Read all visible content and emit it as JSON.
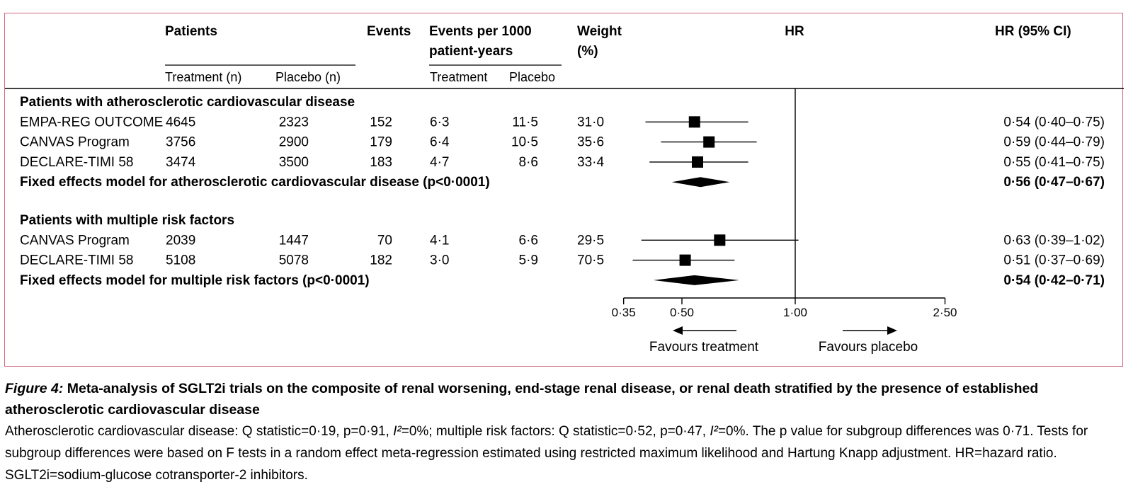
{
  "headers": {
    "patients": "Patients",
    "treatment_n": "Treatment (n)",
    "placebo_n": "Placebo (n)",
    "events": "Events",
    "events_per_1": "Events per 1000",
    "events_per_2": "patient-years",
    "treatment": "Treatment",
    "placebo": "Placebo",
    "weight_1": "Weight",
    "weight_2": "(%)",
    "hr": "HR",
    "hr_ci": "HR (95% CI)"
  },
  "chart_data": {
    "type": "forest",
    "x_scale": "log",
    "xlim": [
      0.35,
      2.5
    ],
    "ticks": [
      {
        "value": 0.35,
        "label": "0·35"
      },
      {
        "value": 0.5,
        "label": "0·50"
      },
      {
        "value": 1.0,
        "label": "1·00"
      },
      {
        "value": 2.5,
        "label": "2·50"
      }
    ],
    "reference_line": 1.0,
    "favours_treatment": "Favours treatment",
    "favours_placebo": "Favours placebo",
    "groups": [
      {
        "label": "Patients with atherosclerotic cardiovascular disease",
        "studies": [
          {
            "name": "EMPA-REG OUTCOME",
            "treatment_n": "4645",
            "placebo_n": "2323",
            "events": "152",
            "rate_treatment": "6·3",
            "rate_placebo": "11·5",
            "weight": "31·0",
            "hr": 0.54,
            "lo": 0.4,
            "hi": 0.75,
            "ci_text": "0·54 (0·40–0·75)"
          },
          {
            "name": "CANVAS Program",
            "treatment_n": "3756",
            "placebo_n": "2900",
            "events": "179",
            "rate_treatment": "6·4",
            "rate_placebo": "10·5",
            "weight": "35·6",
            "hr": 0.59,
            "lo": 0.44,
            "hi": 0.79,
            "ci_text": "0·59 (0·44–0·79)"
          },
          {
            "name": "DECLARE-TIMI 58",
            "treatment_n": "3474",
            "placebo_n": "3500",
            "events": "183",
            "rate_treatment": "4·7",
            "rate_placebo": "8·6",
            "weight": "33·4",
            "hr": 0.55,
            "lo": 0.41,
            "hi": 0.75,
            "ci_text": "0·55 (0·41–0·75)"
          }
        ],
        "pooled": {
          "label": "Fixed effects model for atherosclerotic cardiovascular disease (p<0·0001)",
          "hr": 0.56,
          "lo": 0.47,
          "hi": 0.67,
          "ci_text": "0·56 (0·47–0·67)"
        }
      },
      {
        "label": "Patients with multiple risk factors",
        "studies": [
          {
            "name": "CANVAS Program",
            "treatment_n": "2039",
            "placebo_n": "1447",
            "events": "70",
            "rate_treatment": "4·1",
            "rate_placebo": "6·6",
            "weight": "29·5",
            "hr": 0.63,
            "lo": 0.39,
            "hi": 1.02,
            "ci_text": "0·63 (0·39–1·02)"
          },
          {
            "name": "DECLARE-TIMI 58",
            "treatment_n": "5108",
            "placebo_n": "5078",
            "events": "182",
            "rate_treatment": "3·0",
            "rate_placebo": "5·9",
            "weight": "70·5",
            "hr": 0.51,
            "lo": 0.37,
            "hi": 0.69,
            "ci_text": "0·51 (0·37–0·69)"
          }
        ],
        "pooled": {
          "label": "Fixed effects model for multiple risk factors (p<0·0001)",
          "hr": 0.54,
          "lo": 0.42,
          "hi": 0.71,
          "ci_text": "0·54 (0·42–0·71)"
        }
      }
    ]
  },
  "caption": {
    "figure_label": "Figure 4:",
    "title": "Meta-analysis of SGLT2i trials on the composite of renal worsening, end-stage renal disease, or renal death stratified by the presence of established atherosclerotic cardiovascular disease",
    "body_part1": "Atherosclerotic cardiovascular disease: Q statistic=0·19, p=0·91, ",
    "i2_a": "I²",
    "body_part2": "=0%; multiple risk factors: Q statistic=0·52, p=0·47, ",
    "i2_b": "I²",
    "body_part3": "=0%. The p value for subgroup differences was 0·71. Tests for subgroup differences were based on F tests in a random effect meta-regression estimated using restricted maximum likelihood and Hartung Knapp adjustment. HR=hazard ratio. SGLT2i=sodium-glucose cotransporter-2 inhibitors."
  }
}
